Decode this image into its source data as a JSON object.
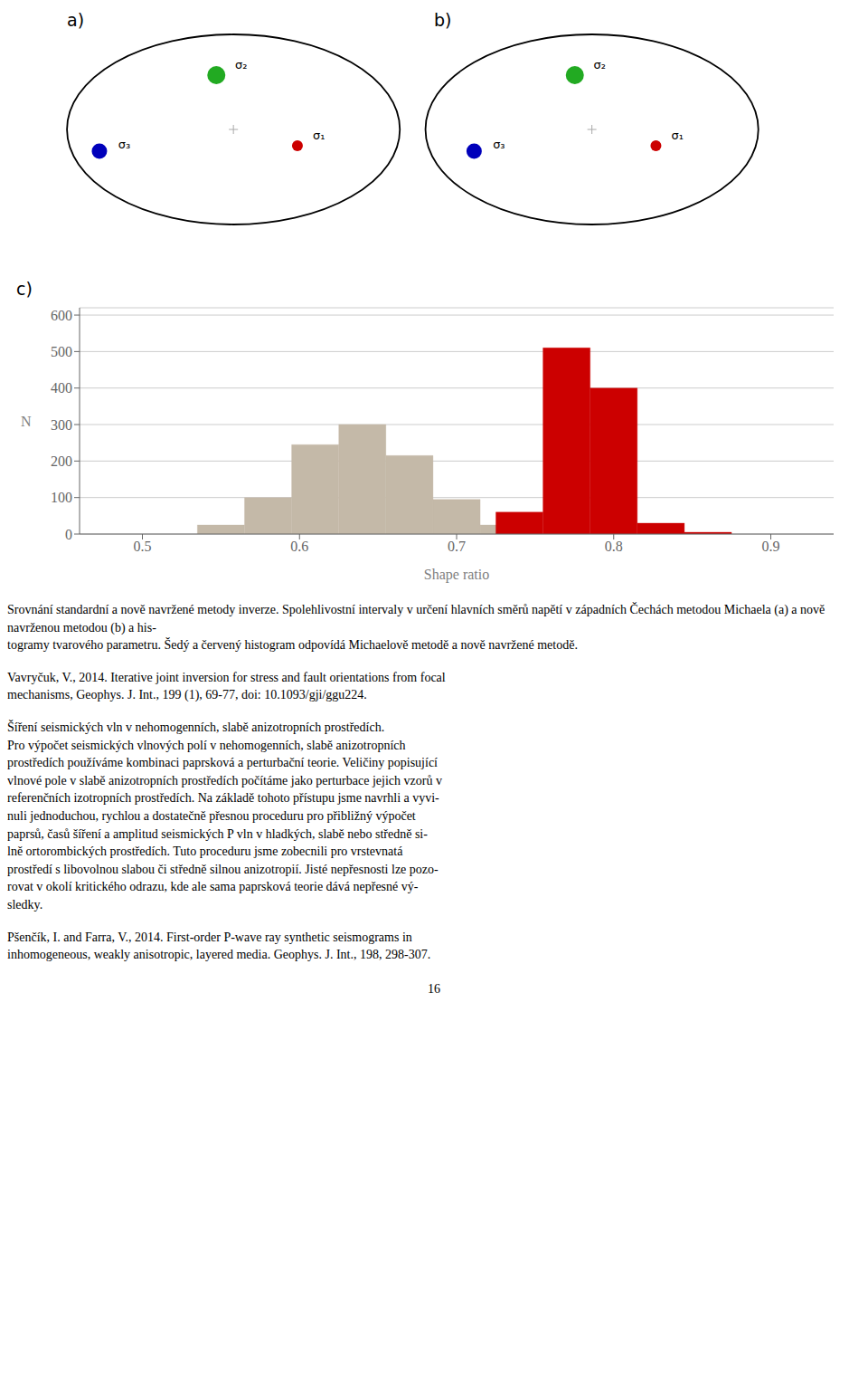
{
  "chart_data": {
    "type": "bar",
    "title": "c)",
    "xlabel": "Shape ratio",
    "ylabel": "N",
    "series": [
      {
        "color": "#C4B9A8",
        "bins": [
          0.535,
          0.565,
          0.595,
          0.625,
          0.655,
          0.685,
          0.715,
          0.745
        ],
        "values": [
          25,
          100,
          245,
          300,
          215,
          95,
          25
        ]
      },
      {
        "color": "#CC0000",
        "bins": [
          0.725,
          0.755,
          0.785,
          0.815,
          0.845,
          0.875
        ],
        "values": [
          60,
          510,
          400,
          30,
          5
        ]
      }
    ],
    "xlim": [
      0.46,
      0.94
    ],
    "ylim": [
      0,
      620
    ],
    "xticks": [
      0.5,
      0.6,
      0.7,
      0.8,
      0.9
    ],
    "yticks": [
      0,
      100,
      200,
      300,
      400,
      500,
      600
    ],
    "grid": true,
    "annotations": [
      "a)",
      "b)",
      "σ₁",
      "σ₂",
      "σ₃",
      "16",
      [
        "Srovnání standardní a nově navržené metody inverze. Spolehlivostní intervaly v určení hlavních směrů napětí v západních Čechách metodou Michaela (a) a nově navrženou metodou (b) a his-",
        "togramy tvarového parametru. Šedý a červený histogram odpovídá Michaelově metodě a nově navržené metodě."
      ],
      [
        "Vavryčuk, V., 2014. Iterative joint inversion for stress and fault orientations from focal",
        "mechanisms, Geophys. J. Int., 199 (1), 69-77, doi: 10.1093/gji/ggu224."
      ],
      [
        "Šíření seismických vln v nehomogenních, slabě anizotropních prostředích.",
        "Pro výpočet seismických vlnových polí v nehomogenních, slabě anizotropních",
        "prostředích používáme kombinaci paprsková a perturbační teorie. Veličiny popisující",
        "vlnové pole v slabě anizotropních prostředích počítáme jako perturbace jejich vzorů v",
        "referenčních izotropních prostředích. Na základě tohoto přístupu jsme navrhli a vyvi-",
        "nuli jednoduchou, rychlou a dostatečně přesnou proceduru pro přibližný výpočet",
        "paprsů, časů šíření a amplitud seismických P vln v hladkých, slabě nebo středně si-",
        "lně ortorombických prostředích. Tuto proceduru jsme zobecnili pro vrstevnatá",
        "prostředí s libovolnou slabou či středně silnou anizotropií. Jisté nepřesnosti lze pozo-",
        "rovat v okolí kritického odrazu, kde ale sama paprsková teorie dává nepřesné vý-",
        "sledky."
      ],
      [
        "Pšenčík, I. and Farra, V., 2014. First-order P-wave ray synthetic seismograms in",
        "inhomogeneous, weakly anisotropic, layered media. Geophys. J. Int., 198, 298-307."
      ]
    ]
  }
}
